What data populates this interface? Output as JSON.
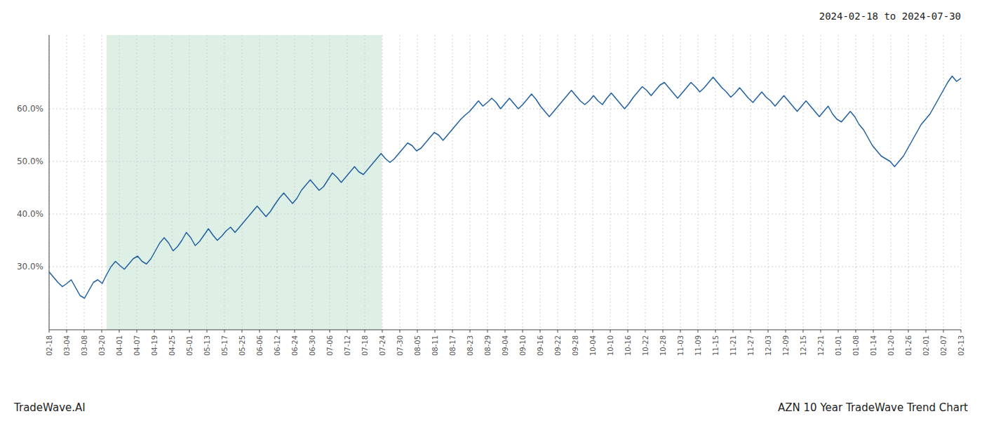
{
  "chart_data": {
    "type": "line",
    "title": "2024-02-18 to 2024-07-30",
    "annotations": [
      "TradeWave.AI",
      "AZN 10 Year TradeWave Trend Chart"
    ],
    "color": "#2060a0",
    "grid": true,
    "bands": [
      {
        "from": 12.978,
        "to": 75.19,
        "color": "#d8ede0"
      }
    ],
    "ylim": [
      18.0,
      74.0
    ],
    "yticks": [
      {
        "value": 30.0,
        "label": "30.0%"
      },
      {
        "value": 40.0,
        "label": "40.0%"
      },
      {
        "value": 50.0,
        "label": "50.0%"
      },
      {
        "value": 60.0,
        "label": "60.0%"
      }
    ],
    "xlim": [
      0,
      206
    ],
    "xticks": [
      {
        "value": 0,
        "label": "02-18"
      },
      {
        "value": 3.9615385,
        "label": "03-04"
      },
      {
        "value": 7.9230769,
        "label": "03-08"
      },
      {
        "value": 11.8846154,
        "label": "03-20"
      },
      {
        "value": 15.8461538,
        "label": "04-01"
      },
      {
        "value": 19.8076923,
        "label": "04-07"
      },
      {
        "value": 23.7692308,
        "label": "04-19"
      },
      {
        "value": 27.7307692,
        "label": "04-25"
      },
      {
        "value": 31.6923077,
        "label": "05-01"
      },
      {
        "value": 35.6538462,
        "label": "05-13"
      },
      {
        "value": 39.6153846,
        "label": "05-17"
      },
      {
        "value": 43.5769231,
        "label": "05-25"
      },
      {
        "value": 47.5384615,
        "label": "06-06"
      },
      {
        "value": 51.5,
        "label": "06-12"
      },
      {
        "value": 55.4615385,
        "label": "06-24"
      },
      {
        "value": 59.4230769,
        "label": "06-30"
      },
      {
        "value": 63.3846154,
        "label": "07-06"
      },
      {
        "value": 67.3461538,
        "label": "07-12"
      },
      {
        "value": 71.3076923,
        "label": "07-18"
      },
      {
        "value": 75.2692308,
        "label": "07-24"
      },
      {
        "value": 79.2307692,
        "label": "07-30"
      },
      {
        "value": 83.1923077,
        "label": "08-05"
      },
      {
        "value": 87.1538462,
        "label": "08-11"
      },
      {
        "value": 91.1153846,
        "label": "08-17"
      },
      {
        "value": 95.0769231,
        "label": "08-23"
      },
      {
        "value": 99.0384615,
        "label": "08-29"
      },
      {
        "value": 103,
        "label": "09-04"
      },
      {
        "value": 106.9615385,
        "label": "09-10"
      },
      {
        "value": 110.9230769,
        "label": "09-16"
      },
      {
        "value": 114.8846154,
        "label": "09-22"
      },
      {
        "value": 118.8461538,
        "label": "09-28"
      },
      {
        "value": 122.8076923,
        "label": "10-04"
      },
      {
        "value": 126.7692308,
        "label": "10-10"
      },
      {
        "value": 130.7307692,
        "label": "10-16"
      },
      {
        "value": 134.6923077,
        "label": "10-22"
      },
      {
        "value": 138.6538462,
        "label": "10-28"
      },
      {
        "value": 142.6153846,
        "label": "11-03"
      },
      {
        "value": 146.5769231,
        "label": "11-09"
      },
      {
        "value": 150.5384615,
        "label": "11-15"
      },
      {
        "value": 154.5,
        "label": "11-21"
      },
      {
        "value": 158.4615385,
        "label": "11-27"
      },
      {
        "value": 162.4230769,
        "label": "12-03"
      },
      {
        "value": 166.3846154,
        "label": "12-09"
      },
      {
        "value": 170.3461538,
        "label": "12-15"
      },
      {
        "value": 174.3076923,
        "label": "12-21"
      },
      {
        "value": 178.2692308,
        "label": "01-01"
      },
      {
        "value": 182.2307692,
        "label": "01-08"
      },
      {
        "value": 186.1923077,
        "label": "01-14"
      },
      {
        "value": 190.1538462,
        "label": "01-20"
      },
      {
        "value": 194.1153846,
        "label": "01-26"
      },
      {
        "value": 198.0769231,
        "label": "02-01"
      },
      {
        "value": 202.0384615,
        "label": "02-07"
      },
      {
        "value": 206,
        "label": "02-13"
      }
    ],
    "x": [
      0,
      1,
      2,
      3,
      4,
      5,
      6,
      7,
      8,
      9,
      10,
      11,
      12,
      13,
      14,
      15,
      16,
      17,
      18,
      19,
      20,
      21,
      22,
      23,
      24,
      25,
      26,
      27,
      28,
      29,
      30,
      31,
      32,
      33,
      34,
      35,
      36,
      37,
      38,
      39,
      40,
      41,
      42,
      43,
      44,
      45,
      46,
      47,
      48,
      49,
      50,
      51,
      52,
      53,
      54,
      55,
      56,
      57,
      58,
      59,
      60,
      61,
      62,
      63,
      64,
      65,
      66,
      67,
      68,
      69,
      70,
      71,
      72,
      73,
      74,
      75,
      76,
      77,
      78,
      79,
      80,
      81,
      82,
      83,
      84,
      85,
      86,
      87,
      88,
      89,
      90,
      91,
      92,
      93,
      94,
      95,
      96,
      97,
      98,
      99,
      100,
      101,
      102,
      103,
      104,
      105,
      106,
      107,
      108,
      109,
      110,
      111,
      112,
      113,
      114,
      115,
      116,
      117,
      118,
      119,
      120,
      121,
      122,
      123,
      124,
      125,
      126,
      127,
      128,
      129,
      130,
      131,
      132,
      133,
      134,
      135,
      136,
      137,
      138,
      139,
      140,
      141,
      142,
      143,
      144,
      145,
      146,
      147,
      148,
      149,
      150,
      151,
      152,
      153,
      154,
      155,
      156,
      157,
      158,
      159,
      160,
      161,
      162,
      163,
      164,
      165,
      166,
      167,
      168,
      169,
      170,
      171,
      172,
      173,
      174,
      175,
      176,
      177,
      178,
      179,
      180,
      181,
      182,
      183,
      184,
      185,
      186,
      187,
      188,
      189,
      190,
      191,
      192,
      193,
      194,
      195,
      196,
      197,
      198,
      199,
      200,
      201,
      202,
      203,
      204,
      205,
      206
    ],
    "values": [
      29.0,
      28.0,
      27.0,
      26.2,
      26.8,
      27.5,
      26.0,
      24.5,
      24.0,
      25.5,
      27.0,
      27.5,
      26.8,
      28.5,
      30.0,
      31.0,
      30.2,
      29.5,
      30.5,
      31.5,
      32.0,
      31.0,
      30.5,
      31.5,
      33.0,
      34.5,
      35.5,
      34.5,
      33.0,
      33.8,
      35.0,
      36.5,
      35.5,
      34.0,
      34.8,
      36.0,
      37.2,
      36.0,
      35.0,
      35.8,
      36.8,
      37.5,
      36.5,
      37.5,
      38.5,
      39.5,
      40.5,
      41.5,
      40.5,
      39.5,
      40.5,
      41.8,
      43.0,
      44.0,
      43.0,
      42.0,
      43.0,
      44.5,
      45.5,
      46.5,
      45.5,
      44.5,
      45.2,
      46.5,
      47.8,
      47.0,
      46.0,
      47.0,
      48.0,
      49.0,
      48.0,
      47.5,
      48.5,
      49.5,
      50.5,
      51.5,
      50.5,
      49.8,
      50.5,
      51.5,
      52.5,
      53.5,
      53.0,
      52.0,
      52.5,
      53.5,
      54.5,
      55.5,
      55.0,
      54.0,
      55.0,
      56.0,
      57.0,
      58.0,
      58.8,
      59.5,
      60.5,
      61.5,
      60.5,
      61.2,
      62.0,
      61.2,
      60.0,
      61.0,
      62.0,
      61.0,
      60.0,
      60.8,
      61.8,
      62.8,
      61.8,
      60.5,
      59.5,
      58.5,
      59.5,
      60.5,
      61.5,
      62.5,
      63.5,
      62.5,
      61.5,
      60.8,
      61.5,
      62.5,
      61.5,
      60.8,
      62.0,
      63.0,
      62.0,
      61.0,
      60.0,
      61.0,
      62.2,
      63.2,
      64.2,
      63.5,
      62.5,
      63.5,
      64.5,
      65.0,
      64.0,
      63.0,
      62.0,
      63.0,
      64.0,
      65.0,
      64.2,
      63.2,
      64.0,
      65.0,
      66.0,
      65.0,
      64.0,
      63.2,
      62.2,
      63.0,
      64.0,
      63.0,
      62.0,
      61.2,
      62.2,
      63.2,
      62.2,
      61.5,
      60.5,
      61.5,
      62.5,
      61.5,
      60.5,
      59.5,
      60.5,
      61.5,
      60.5,
      59.5,
      58.5,
      59.5,
      60.5,
      59.0,
      58.0,
      57.5,
      58.5,
      59.5,
      58.5,
      57.0,
      56.0,
      54.5,
      53.0,
      52.0,
      51.0,
      50.5,
      50.0,
      49.0,
      50.0,
      51.0,
      52.5,
      54.0,
      55.5,
      57.0,
      58.0,
      59.0,
      60.5,
      62.0,
      63.5,
      65.0,
      66.2,
      65.2,
      65.8
    ]
  }
}
